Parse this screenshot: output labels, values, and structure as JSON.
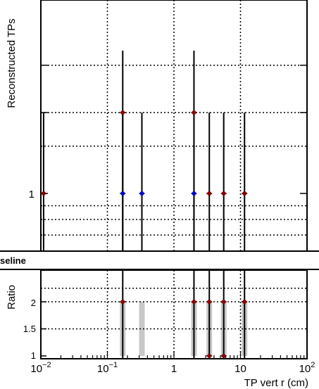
{
  "chart_data": [
    {
      "type": "scatter",
      "panel": "main",
      "ylabel": "Reconstructed TPs",
      "xscale": "log",
      "yscale": "log",
      "grid": true,
      "xlim": [
        0.01,
        100
      ],
      "ytick_labels": [
        "1"
      ],
      "series": [
        {
          "color": "#8b0000",
          "points": [
            {
              "x": 0.011,
              "y": 1
            },
            {
              "x": 0.17,
              "y": 2
            },
            {
              "x": 2.0,
              "y": 2
            },
            {
              "x": 3.4,
              "y": 1
            },
            {
              "x": 5.6,
              "y": 1
            },
            {
              "x": 11.5,
              "y": 1
            }
          ]
        },
        {
          "color": "#0000cc",
          "points": [
            {
              "x": 0.17,
              "y": 1
            },
            {
              "x": 0.33,
              "y": 1
            },
            {
              "x": 2.0,
              "y": 1
            }
          ]
        }
      ]
    },
    {
      "type": "scatter",
      "panel": "ratio",
      "legend_text": "seline",
      "ylabel": "Ratio",
      "xlabel": "TP vert r (cm)",
      "xscale": "log",
      "grid": true,
      "xlim": [
        0.01,
        100
      ],
      "ylim": [
        1,
        2.25
      ],
      "xtick_labels": [
        {
          "base": "10",
          "exp": "−2"
        },
        {
          "base": "10",
          "exp": "−1"
        },
        {
          "base": "1",
          "exp": ""
        },
        {
          "base": "10",
          "exp": ""
        },
        {
          "base": "10",
          "exp": "2"
        }
      ],
      "ytick_labels": [
        "1",
        "1.5",
        "2"
      ],
      "points": [
        {
          "x": 0.17,
          "y": 2
        },
        {
          "x": 2.0,
          "y": 2
        },
        {
          "x": 3.4,
          "y": 2
        },
        {
          "x": 5.6,
          "y": 2
        },
        {
          "x": 11.5,
          "y": 2
        },
        {
          "x": 3.4,
          "y": 1
        },
        {
          "x": 5.6,
          "y": 1
        }
      ],
      "gray_bands": [
        0.17,
        0.33,
        2.0,
        3.4,
        5.6,
        11.5
      ],
      "marker_color": "#8b0000",
      "band_color": "#c8c8c8"
    }
  ]
}
